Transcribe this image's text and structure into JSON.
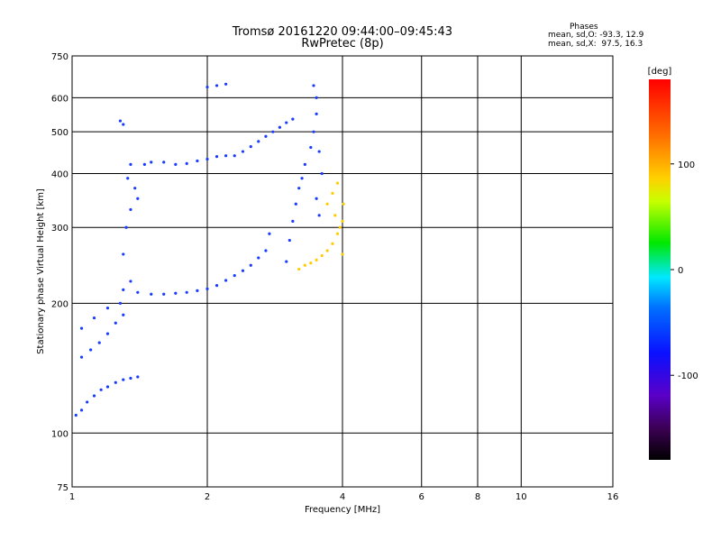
{
  "chart_data": {
    "type": "scatter",
    "title": "Tromsø 20161220 09:44:00–09:45:43",
    "subtitle": "RwPretec (8p)",
    "stats": {
      "heading": "Phases",
      "line_o": "mean, sd,O: -93.3, 12.9",
      "line_x": "mean, sd,X:  97.5, 16.3"
    },
    "xlabel": "Frequency [MHz]",
    "ylabel": "Stationary phase Virtual Height [km]",
    "x_scale": "log",
    "y_scale": "log",
    "xlim": [
      1,
      16
    ],
    "ylim": [
      75,
      750
    ],
    "x_ticks": [
      1,
      2,
      4,
      6,
      8,
      10,
      16
    ],
    "x_tick_labels": [
      "1",
      "2",
      "4",
      "6",
      "8",
      "10",
      "16"
    ],
    "y_ticks": [
      75,
      100,
      200,
      300,
      400,
      500,
      600,
      750
    ],
    "y_tick_labels": [
      "75",
      "100",
      "200",
      "300",
      "400",
      "500",
      "600",
      "750"
    ],
    "grid": true,
    "colorbar": {
      "label": "[deg]",
      "range": [
        -180,
        180
      ],
      "ticks": [
        100,
        0,
        -100
      ],
      "tick_labels": [
        "100",
        "0",
        "-100"
      ]
    },
    "series": [
      {
        "name": "O",
        "color": "#1a3cff",
        "points": [
          [
            1.02,
            110
          ],
          [
            1.05,
            113
          ],
          [
            1.08,
            118
          ],
          [
            1.12,
            122
          ],
          [
            1.16,
            126
          ],
          [
            1.2,
            128
          ],
          [
            1.25,
            131
          ],
          [
            1.3,
            133
          ],
          [
            1.35,
            134
          ],
          [
            1.4,
            135
          ],
          [
            1.05,
            150
          ],
          [
            1.1,
            156
          ],
          [
            1.15,
            162
          ],
          [
            1.2,
            170
          ],
          [
            1.25,
            180
          ],
          [
            1.3,
            188
          ],
          [
            1.05,
            175
          ],
          [
            1.12,
            185
          ],
          [
            1.2,
            195
          ],
          [
            1.28,
            200
          ],
          [
            1.35,
            225
          ],
          [
            1.3,
            260
          ],
          [
            1.32,
            300
          ],
          [
            1.35,
            330
          ],
          [
            1.4,
            350
          ],
          [
            1.38,
            370
          ],
          [
            1.33,
            390
          ],
          [
            1.35,
            420
          ],
          [
            1.3,
            520
          ],
          [
            1.28,
            530
          ],
          [
            1.45,
            420
          ],
          [
            1.5,
            425
          ],
          [
            1.6,
            425
          ],
          [
            1.7,
            420
          ],
          [
            1.8,
            422
          ],
          [
            1.9,
            428
          ],
          [
            2.0,
            432
          ],
          [
            2.1,
            438
          ],
          [
            2.2,
            440
          ],
          [
            1.3,
            215
          ],
          [
            1.4,
            212
          ],
          [
            1.5,
            210
          ],
          [
            1.6,
            210
          ],
          [
            1.7,
            211
          ],
          [
            1.8,
            212
          ],
          [
            1.9,
            214
          ],
          [
            2.0,
            216
          ],
          [
            2.1,
            220
          ],
          [
            2.2,
            226
          ],
          [
            2.3,
            232
          ],
          [
            2.4,
            238
          ],
          [
            2.5,
            245
          ],
          [
            2.6,
            255
          ],
          [
            2.7,
            265
          ],
          [
            2.75,
            290
          ],
          [
            2.3,
            440
          ],
          [
            2.4,
            450
          ],
          [
            2.5,
            462
          ],
          [
            2.6,
            475
          ],
          [
            2.7,
            488
          ],
          [
            2.8,
            500
          ],
          [
            2.9,
            512
          ],
          [
            3.0,
            525
          ],
          [
            3.1,
            535
          ],
          [
            2.0,
            635
          ],
          [
            2.1,
            640
          ],
          [
            2.2,
            645
          ],
          [
            3.0,
            250
          ],
          [
            3.05,
            280
          ],
          [
            3.1,
            310
          ],
          [
            3.15,
            340
          ],
          [
            3.2,
            370
          ],
          [
            3.25,
            390
          ],
          [
            3.3,
            420
          ],
          [
            3.4,
            460
          ],
          [
            3.45,
            500
          ],
          [
            3.5,
            550
          ],
          [
            3.5,
            600
          ],
          [
            3.45,
            640
          ],
          [
            3.55,
            450
          ],
          [
            3.6,
            400
          ],
          [
            3.5,
            350
          ],
          [
            3.55,
            320
          ]
        ]
      },
      {
        "name": "X",
        "color": "#ffcc00",
        "points": [
          [
            3.2,
            240
          ],
          [
            3.3,
            245
          ],
          [
            3.4,
            248
          ],
          [
            3.5,
            252
          ],
          [
            3.6,
            258
          ],
          [
            3.7,
            265
          ],
          [
            3.8,
            275
          ],
          [
            3.9,
            290
          ],
          [
            4.0,
            310
          ],
          [
            3.7,
            340
          ],
          [
            3.8,
            360
          ],
          [
            3.9,
            380
          ],
          [
            4.0,
            260
          ],
          [
            3.95,
            300
          ],
          [
            4.02,
            340
          ],
          [
            3.85,
            320
          ]
        ]
      }
    ]
  }
}
